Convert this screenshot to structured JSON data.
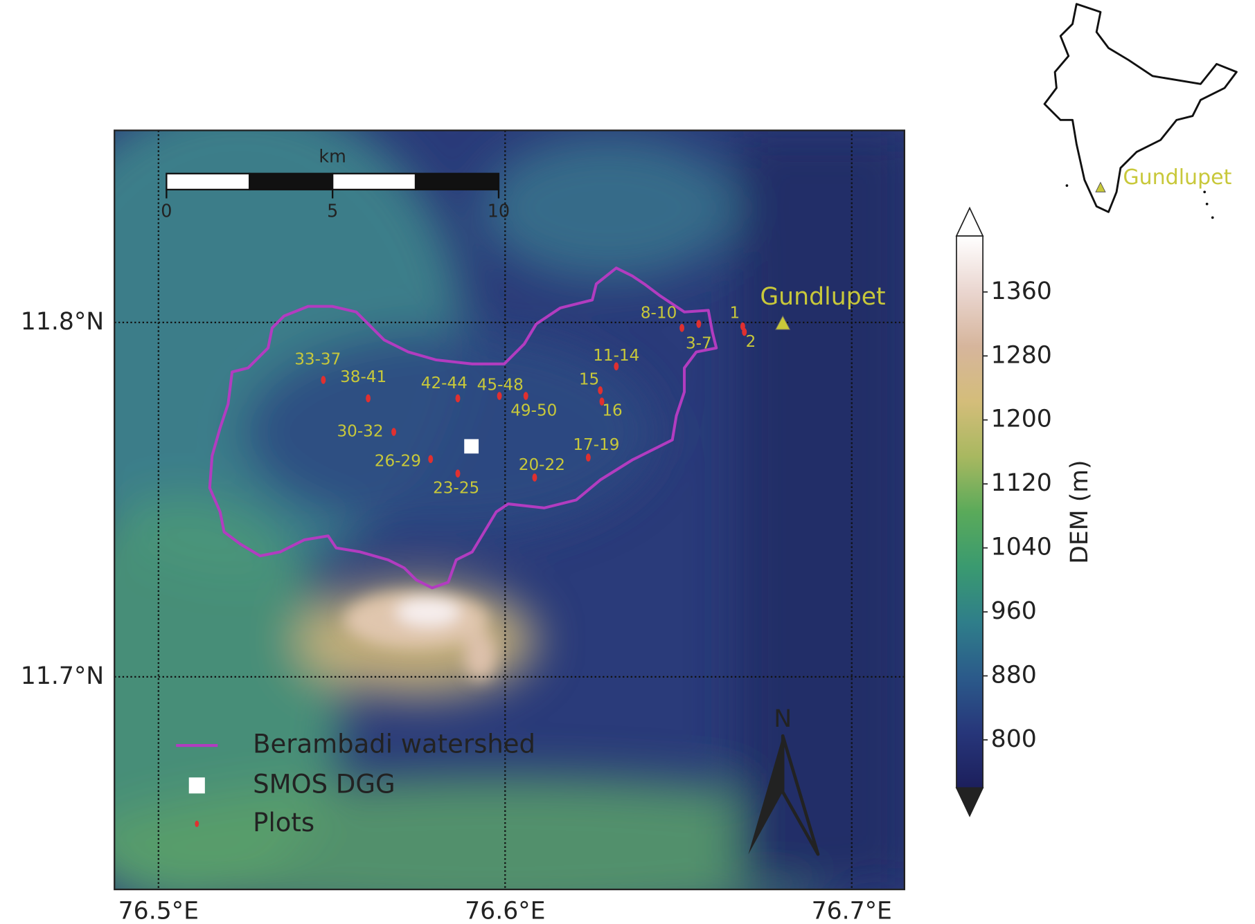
{
  "map": {
    "xlim": [
      76.4873,
      76.7152
    ],
    "ylim": [
      11.64,
      11.8542
    ],
    "xticks": [
      {
        "value": 76.5,
        "label": "76.5°E"
      },
      {
        "value": 76.6,
        "label": "76.6°E"
      },
      {
        "value": 76.7,
        "label": "76.7°E"
      }
    ],
    "yticks": [
      {
        "value": 11.7,
        "label": "11.7°N"
      },
      {
        "value": 11.8,
        "label": "11.8°N"
      }
    ],
    "grid": true,
    "scale_bar": {
      "label": "km",
      "ticks": [
        0,
        5,
        10
      ]
    },
    "legend": [
      {
        "name": "Berambadi watershed",
        "color": "#b23cc0"
      },
      {
        "name": "SMOS DGG",
        "color": "#ffffff"
      },
      {
        "name": "Plots",
        "color": "#e03030"
      }
    ],
    "town": {
      "name": "Gundlupet",
      "color": "#c8c83a"
    },
    "plots": [
      "1",
      "2",
      "3-7",
      "8-10",
      "11-14",
      "15",
      "16",
      "17-19",
      "20-22",
      "23-25",
      "26-29",
      "30-32",
      "33-37",
      "38-41",
      "42-44",
      "45-48",
      "49-50"
    ],
    "north_label": "N",
    "colorbar": {
      "label": "DEM (m)",
      "clim": [
        740,
        1430
      ],
      "ticks": [
        800,
        880,
        960,
        1040,
        1120,
        1200,
        1280,
        1360
      ],
      "colormap": [
        "#1c1f5c",
        "#27367a",
        "#2b5a8a",
        "#2f7e8a",
        "#3a9a70",
        "#5aaa5a",
        "#a8b860",
        "#d4bd7a",
        "#d6b59c",
        "#ead6d0",
        "#ffffff"
      ],
      "extend_colors": [
        "#222222",
        "#ffffff"
      ]
    }
  }
}
